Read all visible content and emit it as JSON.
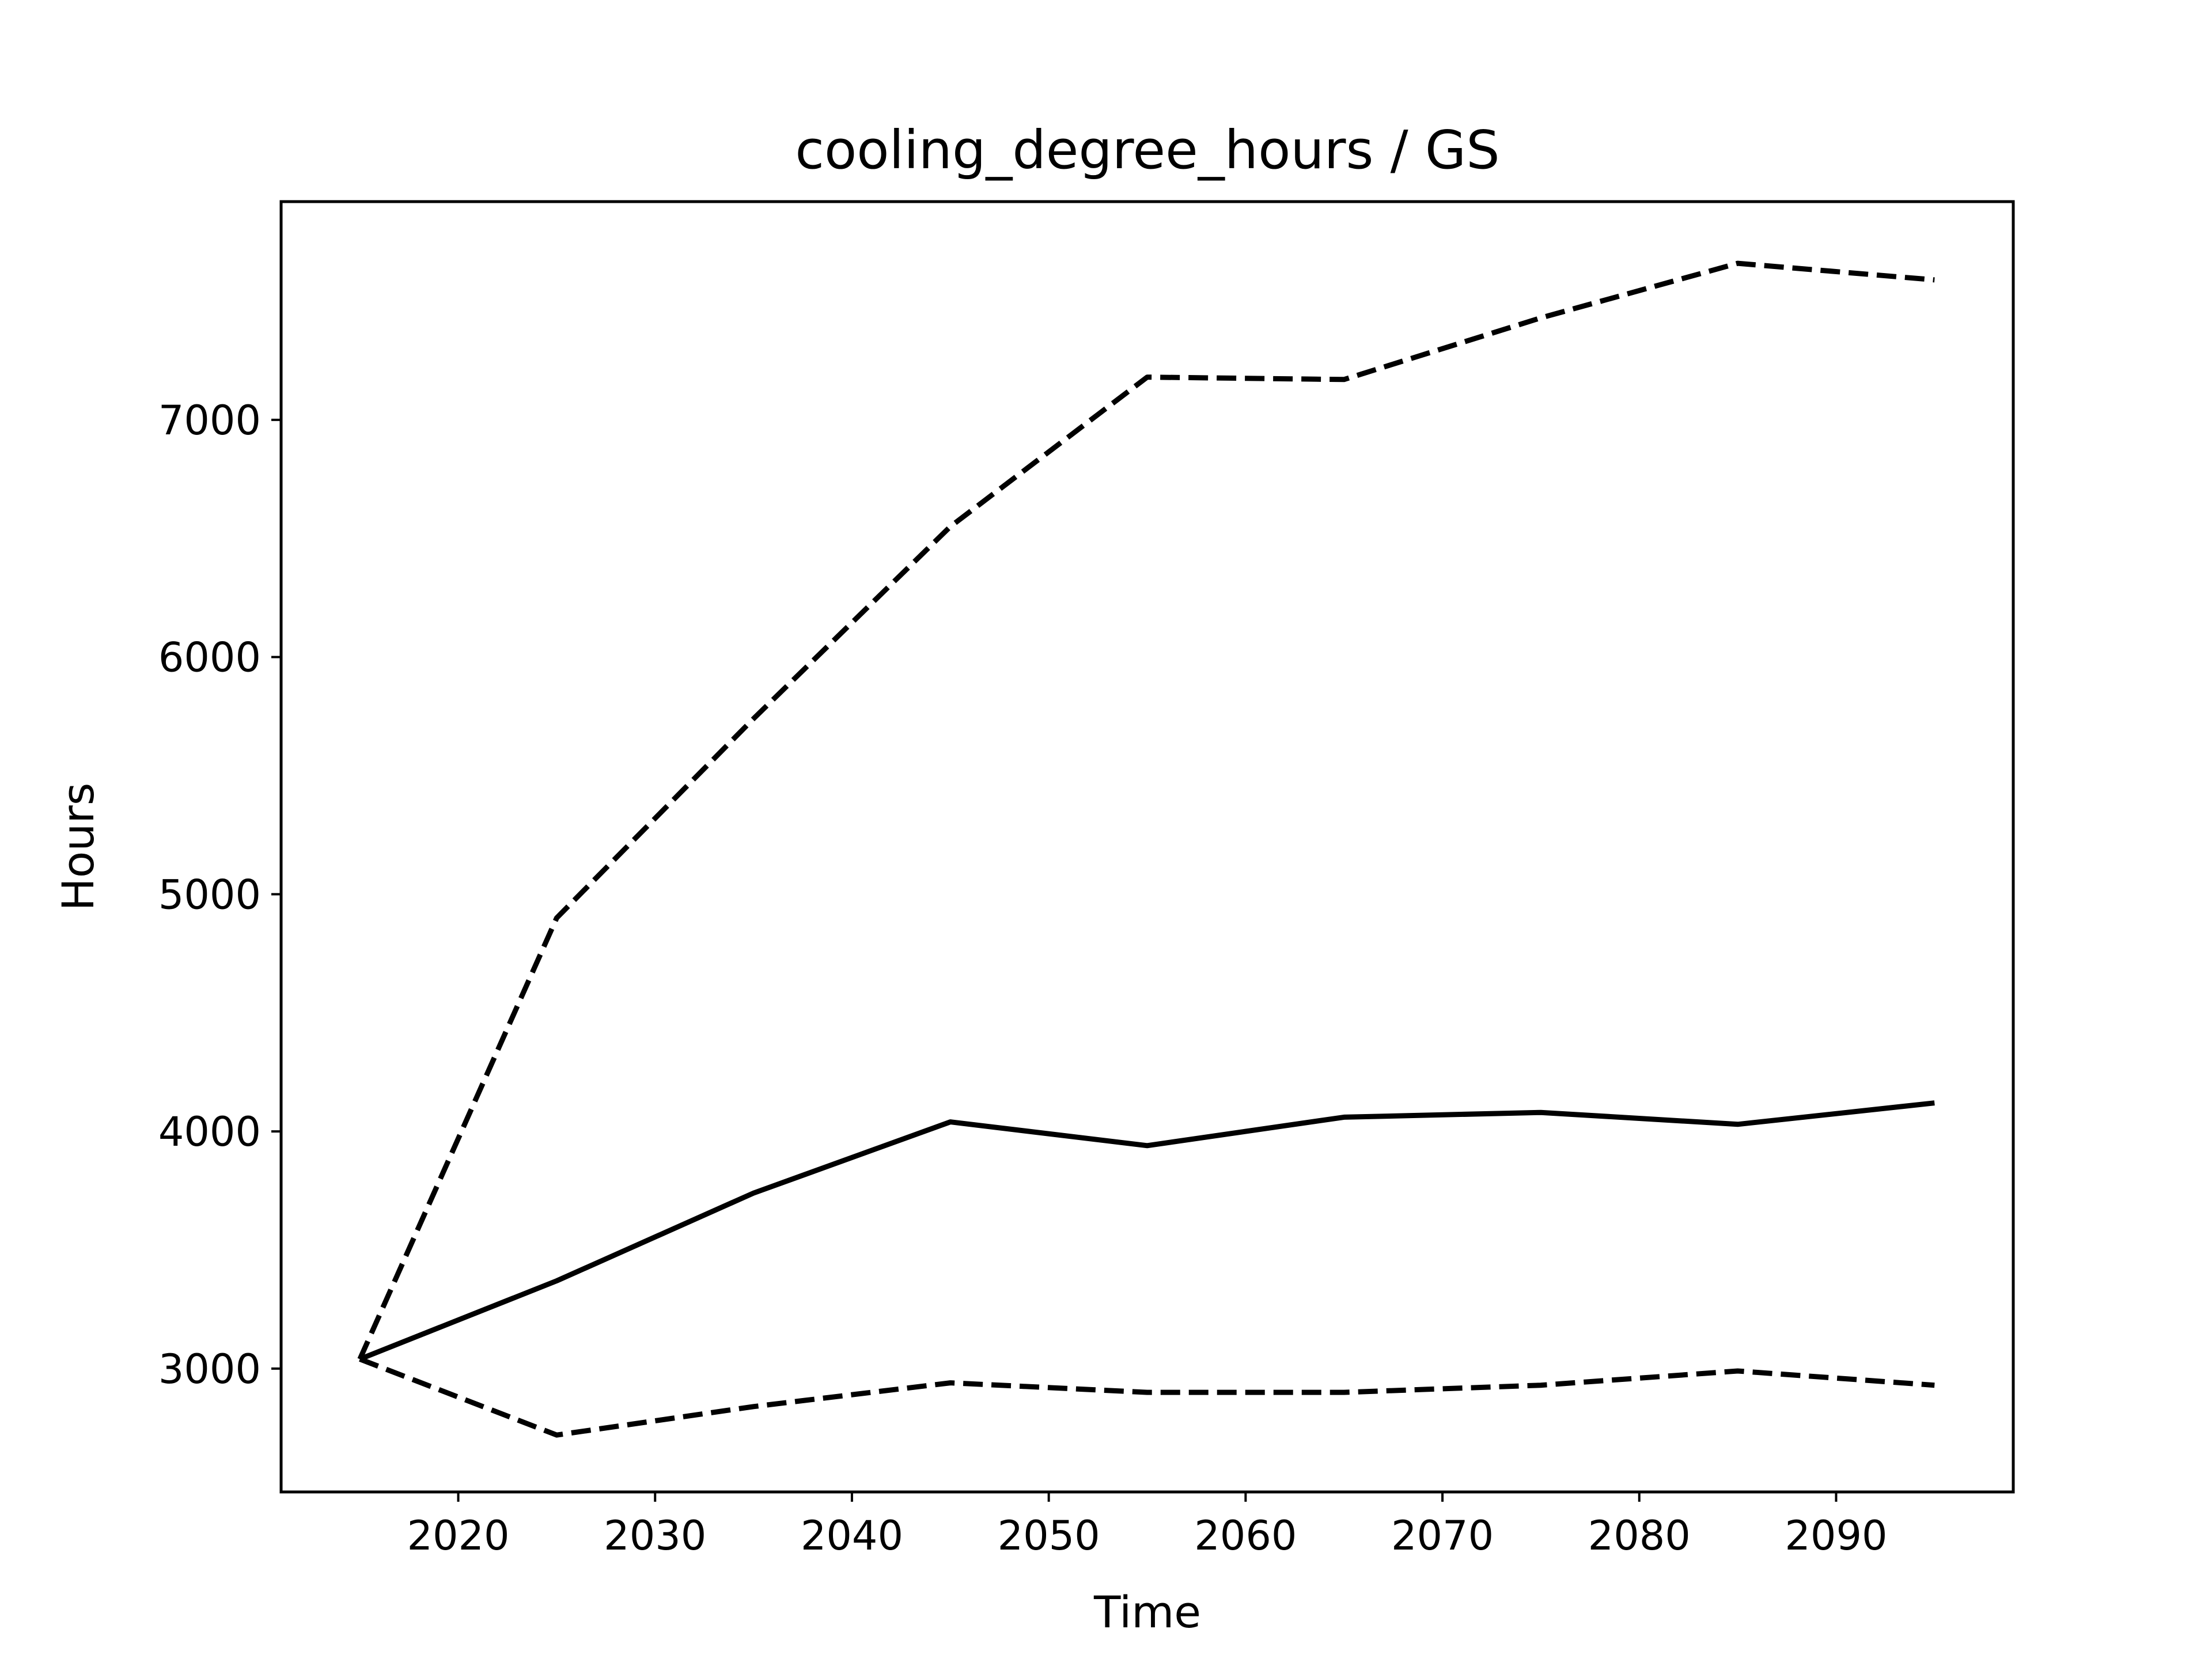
{
  "chart_data": {
    "type": "line",
    "title": "cooling_degree_hours / GS",
    "xlabel": "Time",
    "ylabel": "Hours",
    "xlim": [
      2011,
      2099
    ],
    "ylim": [
      2480,
      7920
    ],
    "x_ticks": [
      2020,
      2030,
      2040,
      2050,
      2060,
      2070,
      2080,
      2090
    ],
    "y_ticks": [
      3000,
      4000,
      5000,
      6000,
      7000
    ],
    "grid": false,
    "legend": "none",
    "x": [
      2015,
      2025,
      2035,
      2045,
      2055,
      2065,
      2075,
      2085,
      2095
    ],
    "series": [
      {
        "style": "solid",
        "color": "#000000",
        "values": [
          3040,
          3370,
          3740,
          4040,
          3940,
          4060,
          4080,
          4030,
          4120
        ]
      },
      {
        "style": "dashed",
        "color": "#000000",
        "values": [
          3040,
          4900,
          5740,
          6550,
          7180,
          7170,
          7430,
          7660,
          7590
        ]
      },
      {
        "style": "dashed",
        "color": "#000000",
        "values": [
          3040,
          2720,
          2840,
          2940,
          2900,
          2900,
          2930,
          2990,
          2930
        ]
      }
    ]
  }
}
